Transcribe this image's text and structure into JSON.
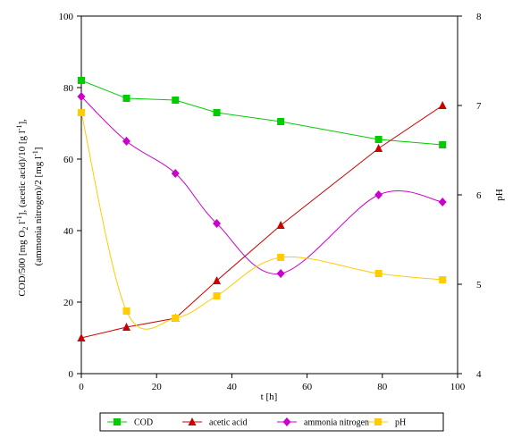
{
  "chart_data": {
    "type": "line",
    "x": [
      0,
      12,
      25,
      36,
      53,
      79,
      96
    ],
    "xlim": [
      0,
      100
    ],
    "xticks": [
      0,
      20,
      40,
      60,
      80,
      100
    ],
    "xlabel": "t [h]",
    "ylabel_left_line1": "COD/500 [mg O",
    "ylabel_left_sub": "2",
    "ylabel_left_rest1": " l",
    "ylabel_left_sup1": "-1",
    "ylabel_left_rest2": "], (acetic acid)/10 [g l",
    "ylabel_left_sup2": "-1",
    "ylabel_left_rest3": "],",
    "ylabel_left_line2": "(ammonia nitrogen)/2 [mg l",
    "ylabel_left_sup3": "-1",
    "ylabel_left_end": "]",
    "ylim_left": [
      0,
      100
    ],
    "yticks_left": [
      0,
      20,
      40,
      60,
      80,
      100
    ],
    "ylabel_right": "pH",
    "ylim_right": [
      4,
      8
    ],
    "yticks_right": [
      4,
      5,
      6,
      7,
      8
    ],
    "grid": false,
    "legend_position": "bottom",
    "series": [
      {
        "name": "COD",
        "axis": "left",
        "color": "#00cc00",
        "marker": "square",
        "smooth": false,
        "values": [
          82,
          77,
          76.5,
          73,
          70.5,
          65.5,
          64
        ]
      },
      {
        "name": "acetic acid",
        "axis": "left",
        "color": "#cc0000",
        "marker": "triangle",
        "smooth": false,
        "values": [
          10,
          13,
          15.5,
          26,
          41.5,
          63,
          75
        ]
      },
      {
        "name": "ammonia nitrogen",
        "axis": "left",
        "color": "#cc00cc",
        "marker": "diamond",
        "smooth": true,
        "values": [
          77.5,
          65,
          56,
          42,
          28,
          50,
          48
        ]
      },
      {
        "name": "pH",
        "axis": "right",
        "color": "#ffcc00",
        "marker": "square",
        "smooth": true,
        "values": [
          6.92,
          4.7,
          4.62,
          4.87,
          5.3,
          5.12,
          5.05
        ]
      }
    ]
  }
}
